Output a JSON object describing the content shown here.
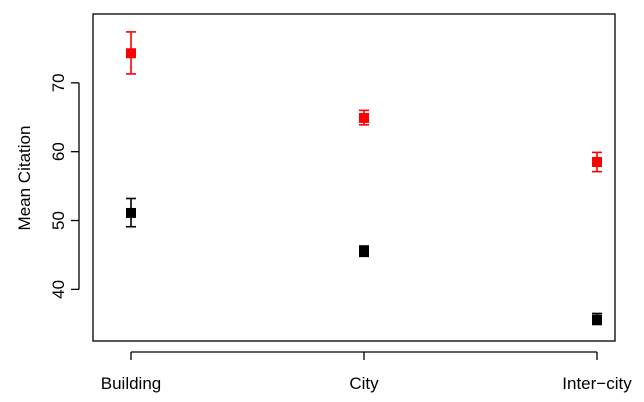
{
  "chart_data": {
    "type": "scatter",
    "categories": [
      "Building",
      "City",
      "Inter−city"
    ],
    "ylabel": "Mean Citation",
    "xlabel": "",
    "ylim": [
      32.5,
      80
    ],
    "yticks": [
      40,
      50,
      60,
      70
    ],
    "grid": false,
    "legend": "none",
    "series": [
      {
        "color": "#ff0000",
        "values": [
          74.3,
          64.9,
          58.5
        ],
        "lower": [
          71.3,
          63.9,
          57.1
        ],
        "upper": [
          77.4,
          66.0,
          59.9
        ]
      },
      {
        "color": "#000000",
        "values": [
          51.1,
          45.5,
          35.6
        ],
        "lower": [
          49.1,
          44.8,
          34.9
        ],
        "upper": [
          53.2,
          46.3,
          36.5
        ]
      }
    ]
  }
}
